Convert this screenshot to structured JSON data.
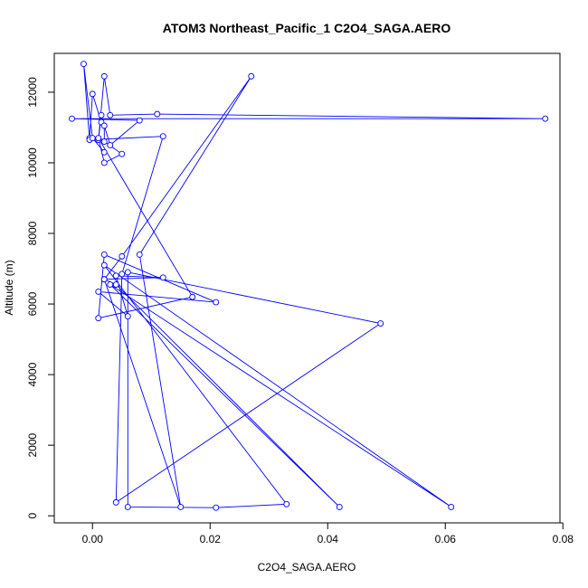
{
  "chart_data": {
    "type": "line",
    "title": "ATOM3 Northeast_Pacific_1 C2O4_SAGA.AERO",
    "xlabel": "C2O4_SAGA.AERO",
    "ylabel": "Altitude (m)",
    "xlim": [
      -0.0065,
      0.0795
    ],
    "ylim": [
      -200,
      13100
    ],
    "xticks": [
      0.0,
      0.02,
      0.04,
      0.06,
      0.08
    ],
    "xtick_labels": [
      "0.00",
      "0.02",
      "0.04",
      "0.06",
      "0.08"
    ],
    "yticks": [
      0,
      2000,
      4000,
      6000,
      8000,
      10000,
      12000
    ],
    "ytick_labels": [
      "0",
      "2000",
      "4000",
      "6000",
      "8000",
      "10000",
      "12000"
    ],
    "grid": false,
    "series": [
      {
        "color": "#0000ff",
        "marker": "open-circle",
        "x": [
          -0.0005,
          0.0,
          0.0015,
          0.0015,
          0.001,
          0.002,
          0.003,
          0.011,
          0.077,
          -0.0035,
          0.008,
          0.003,
          0.002,
          0.002,
          0.005,
          0.002,
          0.001,
          0.017,
          0.001,
          0.002,
          0.021,
          0.001,
          0.006,
          0.004,
          0.012,
          0.002,
          0.005,
          0.027,
          0.008,
          0.015,
          0.002,
          0.004,
          0.042,
          0.003,
          0.061,
          0.002,
          0.033,
          0.021,
          0.006,
          0.006,
          0.049,
          0.004,
          0.005,
          0.012,
          -0.0005,
          -0.0015,
          0.0,
          0.002
        ],
        "y": [
          10700,
          11950,
          11150,
          11350,
          10650,
          12450,
          11350,
          11380,
          11250,
          11250,
          11200,
          10500,
          11050,
          10600,
          10250,
          10000,
          10700,
          6200,
          5600,
          7400,
          6050,
          6350,
          5650,
          6800,
          6750,
          6700,
          7350,
          12450,
          7400,
          250,
          6700,
          6550,
          250,
          6550,
          250,
          7100,
          330,
          230,
          250,
          6900,
          5450,
          380,
          6850,
          10750,
          10650,
          12800,
          10700,
          10300
        ]
      }
    ]
  }
}
